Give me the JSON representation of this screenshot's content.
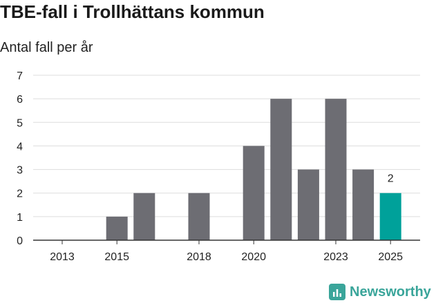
{
  "header": {
    "title": "TBE-fall i Trollhättans kommun",
    "subtitle": "Antal fall per år"
  },
  "brand": {
    "name": "Newsworthy",
    "icon": "newsworthy-logo-icon"
  },
  "colors": {
    "bar": "#6d6d73",
    "highlight": "#00a19a",
    "grid": "#dddddd",
    "axis": "#333333"
  },
  "chart_data": {
    "type": "bar",
    "title": "TBE-fall i Trollhättans kommun",
    "subtitle": "Antal fall per år",
    "xlabel": "",
    "ylabel": "",
    "categories": [
      "2013",
      "2014",
      "2015",
      "2016",
      "2017",
      "2018",
      "2019",
      "2020",
      "2021",
      "2022",
      "2023",
      "2024",
      "2025"
    ],
    "values": [
      0,
      0,
      1,
      2,
      0,
      2,
      0,
      4,
      6,
      3,
      6,
      3,
      2
    ],
    "highlight_index": 12,
    "data_labels": [
      {
        "index": 12,
        "text": "2"
      }
    ],
    "x_tick_labels": [
      "2013",
      "2015",
      "2018",
      "2020",
      "2023",
      "2025"
    ],
    "y_ticks": [
      "0",
      "1",
      "2",
      "3",
      "4",
      "5",
      "6",
      "7"
    ],
    "ylim": [
      0,
      7
    ],
    "grid": true,
    "legend": "none"
  }
}
